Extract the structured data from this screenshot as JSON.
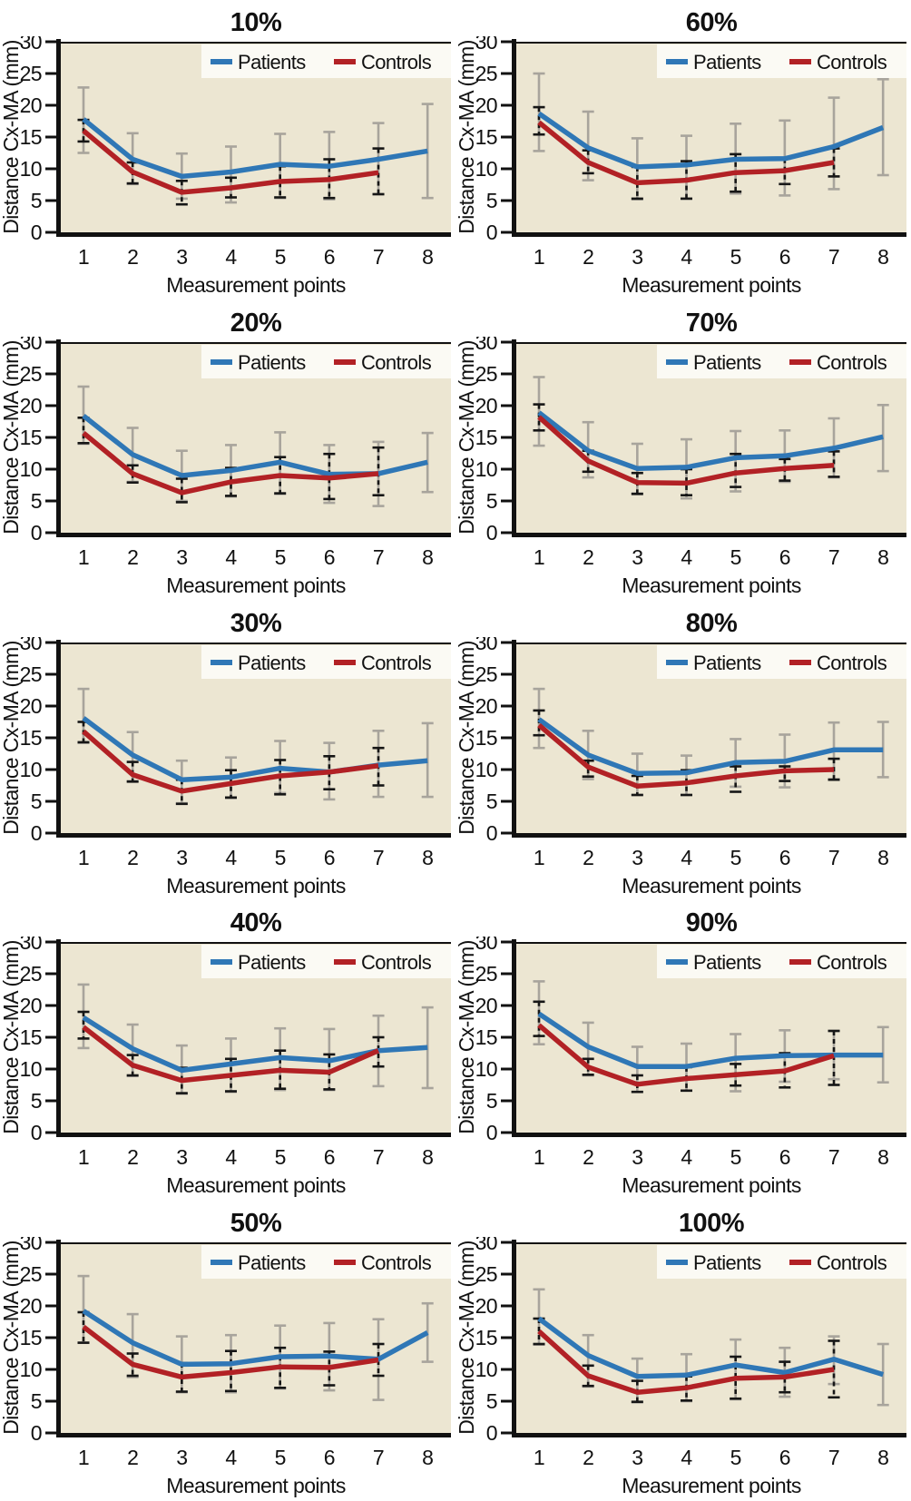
{
  "figure": {
    "xlabel": "Measurement points",
    "ylabel": "Distance Cx-MA (mm)",
    "legend": [
      "Patients",
      "Controls"
    ],
    "colors": {
      "patients_line": "#2F77B6",
      "controls_line": "#B22125",
      "patients_errorbar": "#A8A49C",
      "controls_errorbar": "#161616",
      "plot_bg": "#ECE6D2",
      "legend_bg": "#FBFAF4",
      "axis": "#111111",
      "text": "#111111"
    }
  },
  "chart_data": [
    {
      "type": "line",
      "title": "10%",
      "xlabel": "Measurement points",
      "ylabel": "Distance Cx-MA (mm)",
      "x": [
        1,
        2,
        3,
        4,
        5,
        6,
        7,
        8
      ],
      "ylim": [
        0,
        30
      ],
      "yticks": [
        0,
        5,
        10,
        15,
        20,
        25,
        30
      ],
      "legend_position": "top-right",
      "grid": false,
      "series": [
        {
          "name": "Patients",
          "values": [
            17.8,
            11.5,
            8.8,
            9.5,
            10.7,
            10.4,
            11.5,
            12.8
          ],
          "err_low": [
            12.5,
            7.6,
            5.3,
            4.7,
            5.4,
            5.2,
            6.0,
            5.4
          ],
          "err_high": [
            22.8,
            15.6,
            12.4,
            13.5,
            15.5,
            15.8,
            17.2,
            20.2
          ]
        },
        {
          "name": "Controls",
          "values": [
            16.0,
            9.5,
            6.3,
            7.0,
            8.0,
            8.3,
            9.4
          ],
          "err_low": [
            14.3,
            7.7,
            4.4,
            5.5,
            5.5,
            5.4,
            6.0
          ],
          "err_high": [
            17.7,
            11.0,
            8.1,
            8.6,
            10.4,
            11.5,
            13.2
          ]
        }
      ]
    },
    {
      "type": "line",
      "title": "60%",
      "xlabel": "Measurement points",
      "ylabel": "Distance Cx-MA (mm)",
      "x": [
        1,
        2,
        3,
        4,
        5,
        6,
        7,
        8
      ],
      "ylim": [
        0,
        30
      ],
      "yticks": [
        0,
        5,
        10,
        15,
        20,
        25,
        30
      ],
      "legend_position": "top-right",
      "grid": false,
      "series": [
        {
          "name": "Patients",
          "values": [
            18.7,
            13.3,
            10.3,
            10.6,
            11.5,
            11.6,
            13.5,
            16.5
          ],
          "err_low": [
            12.8,
            8.2,
            5.2,
            5.3,
            6.1,
            5.8,
            6.8,
            9.0
          ],
          "err_high": [
            25.0,
            19.0,
            14.8,
            15.2,
            17.1,
            17.6,
            21.2,
            24.1
          ]
        },
        {
          "name": "Controls",
          "values": [
            17.3,
            11.0,
            7.8,
            8.2,
            9.4,
            9.7,
            11.0
          ],
          "err_low": [
            15.4,
            9.3,
            5.3,
            5.3,
            6.4,
            7.6,
            8.8
          ],
          "err_high": [
            19.7,
            12.9,
            10.3,
            11.2,
            12.3,
            11.6,
            13.2
          ]
        }
      ]
    },
    {
      "type": "line",
      "title": "20%",
      "xlabel": "Measurement points",
      "ylabel": "Distance Cx-MA (mm)",
      "x": [
        1,
        2,
        3,
        4,
        5,
        6,
        7,
        8
      ],
      "ylim": [
        0,
        30
      ],
      "yticks": [
        0,
        5,
        10,
        15,
        20,
        25,
        30
      ],
      "legend_position": "top-right",
      "grid": false,
      "series": [
        {
          "name": "Patients",
          "values": [
            18.4,
            12.3,
            9.0,
            9.8,
            11.1,
            9.2,
            9.3,
            11.1
          ],
          "err_low": [
            14.0,
            8.0,
            5.0,
            5.7,
            6.1,
            4.7,
            4.2,
            6.4
          ],
          "err_high": [
            23.0,
            16.5,
            12.9,
            13.8,
            15.8,
            13.8,
            14.3,
            15.7
          ]
        },
        {
          "name": "Controls",
          "values": [
            15.7,
            9.3,
            6.3,
            8.0,
            9.0,
            8.6,
            9.3
          ],
          "err_low": [
            14.1,
            7.9,
            4.8,
            5.8,
            6.2,
            5.3,
            5.9
          ],
          "err_high": [
            18.1,
            10.6,
            8.5,
            10.2,
            11.9,
            12.4,
            13.4
          ]
        }
      ]
    },
    {
      "type": "line",
      "title": "70%",
      "xlabel": "Measurement points",
      "ylabel": "Distance Cx-MA (mm)",
      "x": [
        1,
        2,
        3,
        4,
        5,
        6,
        7,
        8
      ],
      "ylim": [
        0,
        30
      ],
      "yticks": [
        0,
        5,
        10,
        15,
        20,
        25,
        30
      ],
      "legend_position": "top-right",
      "grid": false,
      "series": [
        {
          "name": "Patients",
          "values": [
            18.9,
            12.9,
            10.1,
            10.3,
            11.8,
            12.1,
            13.3,
            15.1
          ],
          "err_low": [
            13.7,
            8.7,
            6.2,
            5.4,
            6.5,
            8.0,
            8.7,
            9.7
          ],
          "err_high": [
            24.5,
            17.4,
            14.0,
            14.7,
            16.0,
            16.1,
            18.0,
            20.1
          ]
        },
        {
          "name": "Controls",
          "values": [
            18.2,
            11.3,
            7.9,
            7.8,
            9.4,
            10.1,
            10.6
          ],
          "err_low": [
            16.1,
            9.6,
            6.1,
            5.9,
            7.2,
            8.2,
            8.8
          ],
          "err_high": [
            20.2,
            12.9,
            9.4,
            10.0,
            12.4,
            11.6,
            12.8
          ]
        }
      ]
    },
    {
      "type": "line",
      "title": "30%",
      "xlabel": "Measurement points",
      "ylabel": "Distance Cx-MA (mm)",
      "x": [
        1,
        2,
        3,
        4,
        5,
        6,
        7,
        8
      ],
      "ylim": [
        0,
        30
      ],
      "yticks": [
        0,
        5,
        10,
        15,
        20,
        25,
        30
      ],
      "legend_position": "top-right",
      "grid": false,
      "series": [
        {
          "name": "Patients",
          "values": [
            18.1,
            12.3,
            8.4,
            8.8,
            10.2,
            9.6,
            10.7,
            11.4
          ],
          "err_low": [
            14.2,
            8.2,
            4.7,
            5.5,
            6.3,
            5.3,
            5.7,
            5.7
          ],
          "err_high": [
            22.7,
            15.9,
            11.4,
            11.9,
            14.5,
            14.2,
            16.1,
            17.3
          ]
        },
        {
          "name": "Controls",
          "values": [
            16.0,
            9.2,
            6.6,
            7.8,
            9.0,
            9.6,
            10.6
          ],
          "err_low": [
            14.3,
            8.1,
            4.6,
            5.6,
            6.1,
            6.9,
            7.5
          ],
          "err_high": [
            17.5,
            11.2,
            8.4,
            9.9,
            11.5,
            12.1,
            13.4
          ]
        }
      ]
    },
    {
      "type": "line",
      "title": "80%",
      "xlabel": "Measurement points",
      "ylabel": "Distance Cx-MA (mm)",
      "x": [
        1,
        2,
        3,
        4,
        5,
        6,
        7,
        8
      ],
      "ylim": [
        0,
        30
      ],
      "yticks": [
        0,
        5,
        10,
        15,
        20,
        25,
        30
      ],
      "legend_position": "top-right",
      "grid": false,
      "series": [
        {
          "name": "Patients",
          "values": [
            17.9,
            12.3,
            9.4,
            9.5,
            11.1,
            11.3,
            13.1,
            13.1
          ],
          "err_low": [
            13.4,
            8.5,
            6.0,
            6.0,
            7.3,
            7.2,
            8.5,
            8.8
          ],
          "err_high": [
            22.7,
            16.1,
            12.5,
            12.2,
            14.8,
            15.5,
            17.4,
            17.5
          ]
        },
        {
          "name": "Controls",
          "values": [
            17.0,
            10.4,
            7.4,
            7.9,
            9.0,
            9.8,
            10.0
          ],
          "err_low": [
            15.4,
            8.9,
            6.0,
            6.0,
            6.5,
            8.2,
            8.4
          ],
          "err_high": [
            19.3,
            11.4,
            9.0,
            9.9,
            10.5,
            10.5,
            11.7
          ]
        }
      ]
    },
    {
      "type": "line",
      "title": "40%",
      "xlabel": "Measurement points",
      "ylabel": "Distance Cx-MA (mm)",
      "x": [
        1,
        2,
        3,
        4,
        5,
        6,
        7,
        8
      ],
      "ylim": [
        0,
        30
      ],
      "yticks": [
        0,
        5,
        10,
        15,
        20,
        25,
        30
      ],
      "legend_position": "top-right",
      "grid": false,
      "series": [
        {
          "name": "Patients",
          "values": [
            18.1,
            13.2,
            9.8,
            10.8,
            11.8,
            11.3,
            12.9,
            13.4
          ],
          "err_low": [
            13.3,
            8.9,
            6.1,
            6.4,
            6.7,
            6.7,
            7.3,
            7.0
          ],
          "err_high": [
            23.3,
            17.0,
            13.7,
            14.8,
            16.4,
            16.3,
            18.4,
            19.7
          ]
        },
        {
          "name": "Controls",
          "values": [
            16.6,
            10.6,
            8.2,
            9.0,
            9.8,
            9.5,
            12.9
          ],
          "err_low": [
            14.8,
            9.0,
            6.2,
            6.5,
            6.9,
            6.8,
            10.4
          ],
          "err_high": [
            19.0,
            12.2,
            10.2,
            11.6,
            12.9,
            12.3,
            15.0
          ]
        }
      ]
    },
    {
      "type": "line",
      "title": "90%",
      "xlabel": "Measurement points",
      "ylabel": "Distance Cx-MA (mm)",
      "x": [
        1,
        2,
        3,
        4,
        5,
        6,
        7,
        8
      ],
      "ylim": [
        0,
        30
      ],
      "yticks": [
        0,
        5,
        10,
        15,
        20,
        25,
        30
      ],
      "legend_position": "top-right",
      "grid": false,
      "series": [
        {
          "name": "Patients",
          "values": [
            18.7,
            13.5,
            10.4,
            10.4,
            11.7,
            12.1,
            12.2,
            12.2
          ],
          "err_low": [
            13.9,
            9.0,
            6.4,
            6.6,
            6.5,
            8.0,
            8.4,
            7.9
          ],
          "err_high": [
            23.8,
            17.3,
            13.5,
            14.0,
            15.5,
            16.1,
            16.0,
            16.6
          ]
        },
        {
          "name": "Controls",
          "values": [
            16.9,
            10.3,
            7.6,
            8.5,
            9.1,
            9.7,
            12.1
          ],
          "err_low": [
            15.2,
            9.1,
            6.4,
            6.6,
            7.4,
            7.1,
            7.5
          ],
          "err_high": [
            20.6,
            11.6,
            9.0,
            10.3,
            10.8,
            12.5,
            16.0
          ]
        }
      ]
    },
    {
      "type": "line",
      "title": "50%",
      "xlabel": "Measurement points",
      "ylabel": "Distance Cx-MA (mm)",
      "x": [
        1,
        2,
        3,
        4,
        5,
        6,
        7,
        8
      ],
      "ylim": [
        0,
        30
      ],
      "yticks": [
        0,
        5,
        10,
        15,
        20,
        25,
        30
      ],
      "legend_position": "top-right",
      "grid": false,
      "series": [
        {
          "name": "Patients",
          "values": [
            19.2,
            14.2,
            10.8,
            10.9,
            12.0,
            12.1,
            11.6,
            15.8
          ],
          "err_low": [
            14.2,
            8.8,
            6.4,
            6.4,
            7.0,
            6.7,
            5.2,
            11.2
          ],
          "err_high": [
            24.7,
            18.7,
            15.2,
            15.4,
            16.9,
            17.3,
            17.9,
            20.4
          ]
        },
        {
          "name": "Controls",
          "values": [
            16.7,
            10.8,
            8.8,
            9.5,
            10.4,
            10.3,
            11.5
          ],
          "err_low": [
            14.2,
            9.0,
            6.5,
            6.6,
            7.1,
            7.5,
            9.0
          ],
          "err_high": [
            19.0,
            12.5,
            11.0,
            12.9,
            13.4,
            12.8,
            14.0
          ]
        }
      ]
    },
    {
      "type": "line",
      "title": "100%",
      "xlabel": "Measurement points",
      "ylabel": "Distance Cx-MA (mm)",
      "x": [
        1,
        2,
        3,
        4,
        5,
        6,
        7,
        8
      ],
      "ylim": [
        0,
        30
      ],
      "yticks": [
        0,
        5,
        10,
        15,
        20,
        25,
        30
      ],
      "legend_position": "top-right",
      "grid": false,
      "series": [
        {
          "name": "Patients",
          "values": [
            18.0,
            12.2,
            8.9,
            9.1,
            10.7,
            9.5,
            11.6,
            9.2
          ],
          "err_low": [
            13.9,
            7.3,
            4.8,
            5.0,
            5.3,
            5.7,
            7.7,
            4.4
          ],
          "err_high": [
            22.6,
            15.4,
            11.7,
            12.4,
            14.7,
            13.4,
            15.2,
            14.0
          ]
        },
        {
          "name": "Controls",
          "values": [
            16.0,
            9.0,
            6.4,
            7.1,
            8.6,
            8.8,
            10.0
          ],
          "err_low": [
            14.0,
            7.4,
            4.9,
            5.1,
            5.4,
            6.4,
            5.6
          ],
          "err_high": [
            18.0,
            10.6,
            8.2,
            8.9,
            12.0,
            11.2,
            14.5
          ]
        }
      ]
    }
  ]
}
